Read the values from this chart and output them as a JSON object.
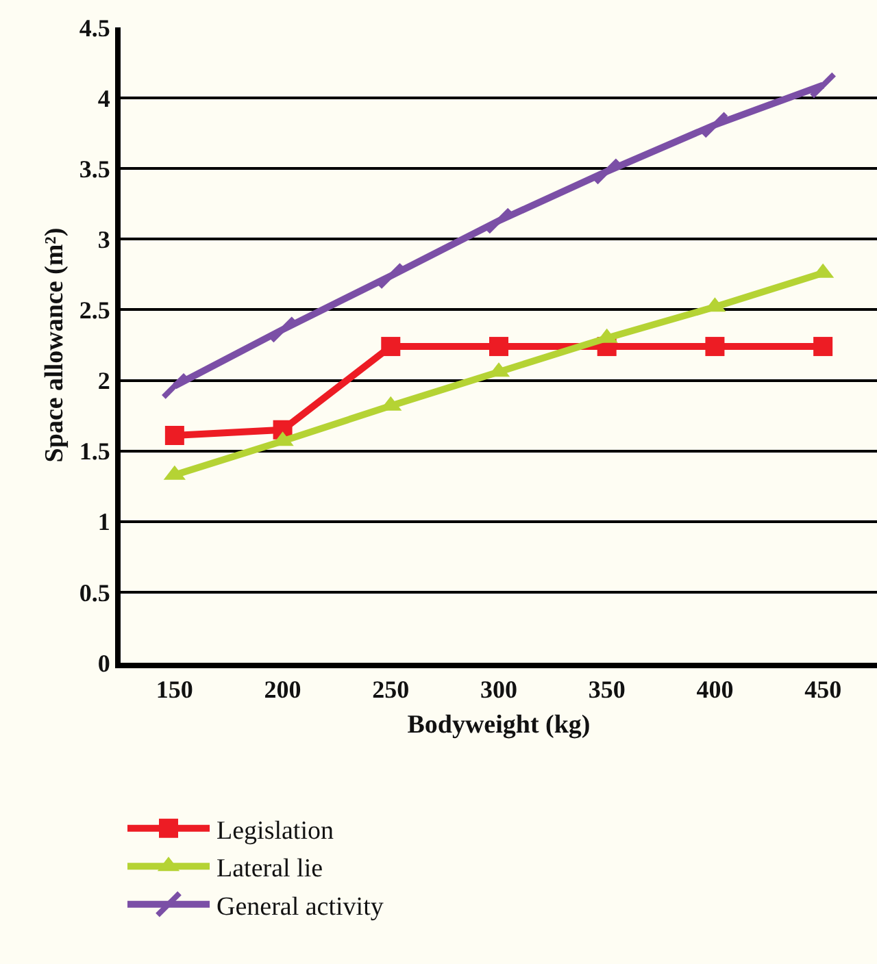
{
  "chart_data": {
    "type": "line",
    "xlabel": "Bodyweight (kg)",
    "ylabel": "Space allowance (m²)",
    "categories": [
      "150",
      "200",
      "250",
      "300",
      "350",
      "400",
      "450"
    ],
    "series": [
      {
        "name": "Legislation",
        "color": "#ed1c24",
        "marker": "square",
        "values": [
          1.61,
          1.65,
          2.24,
          2.24,
          2.24,
          2.24,
          2.24
        ]
      },
      {
        "name": "Lateral lie",
        "color": "#b5d334",
        "marker": "triangle",
        "values": [
          1.33,
          1.57,
          1.82,
          2.06,
          2.3,
          2.52,
          2.76
        ]
      },
      {
        "name": "General activity",
        "color": "#7b4fa6",
        "marker": "cross",
        "values": [
          1.96,
          2.36,
          2.74,
          3.13,
          3.48,
          3.81,
          4.09
        ]
      }
    ],
    "ylim": [
      0,
      4.5
    ],
    "yticks": [
      0,
      0.5,
      1,
      1.5,
      2,
      2.5,
      3,
      3.5,
      4,
      4.5
    ],
    "grid": "y",
    "legend": "bottom",
    "line_style": "solid"
  }
}
